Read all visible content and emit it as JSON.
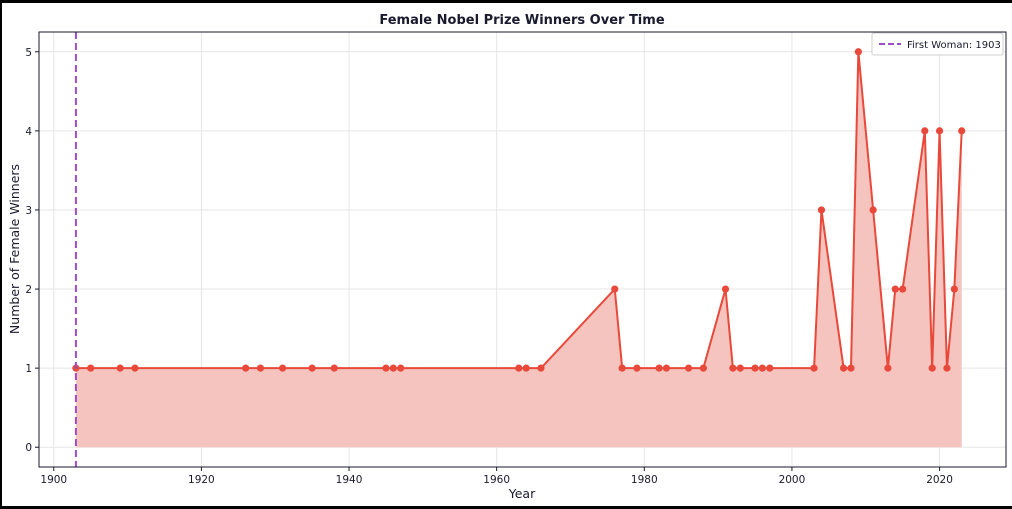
{
  "chart_data": {
    "type": "area",
    "title": "Female Nobel Prize Winners Over Time",
    "xlabel": "Year",
    "ylabel": "Number of Female Winners",
    "xlim": [
      1898,
      2029
    ],
    "ylim": [
      -0.25,
      5.25
    ],
    "xticks": [
      1900,
      1920,
      1940,
      1960,
      1980,
      2000,
      2020
    ],
    "yticks": [
      0,
      1,
      2,
      3,
      4,
      5
    ],
    "grid": true,
    "legend_position": "top-right",
    "colors": {
      "line": "#e8493a",
      "fill": "#f5c4bf",
      "marker": "#e8493a",
      "reference": "#9b4dca",
      "axis": "#1a1a2e"
    },
    "series": [
      {
        "x": [
          1903,
          1905,
          1909,
          1911,
          1926,
          1928,
          1931,
          1935,
          1938,
          1945,
          1946,
          1947,
          1963,
          1964,
          1966,
          1976,
          1977,
          1979,
          1982,
          1983,
          1986,
          1988,
          1991,
          1992,
          1993,
          1995,
          1996,
          1997,
          2003,
          2004,
          2007,
          2008,
          2009,
          2011,
          2013,
          2014,
          2015,
          2018,
          2019,
          2020,
          2021,
          2022,
          2023
        ],
        "y": [
          1,
          1,
          1,
          1,
          1,
          1,
          1,
          1,
          1,
          1,
          1,
          1,
          1,
          1,
          1,
          2,
          1,
          1,
          1,
          1,
          1,
          1,
          2,
          1,
          1,
          1,
          1,
          1,
          1,
          3,
          1,
          1,
          5,
          3,
          1,
          2,
          2,
          4,
          1,
          4,
          1,
          2,
          4
        ]
      }
    ],
    "reference_line": {
      "x": 1903,
      "label": "First Woman: 1903"
    }
  }
}
